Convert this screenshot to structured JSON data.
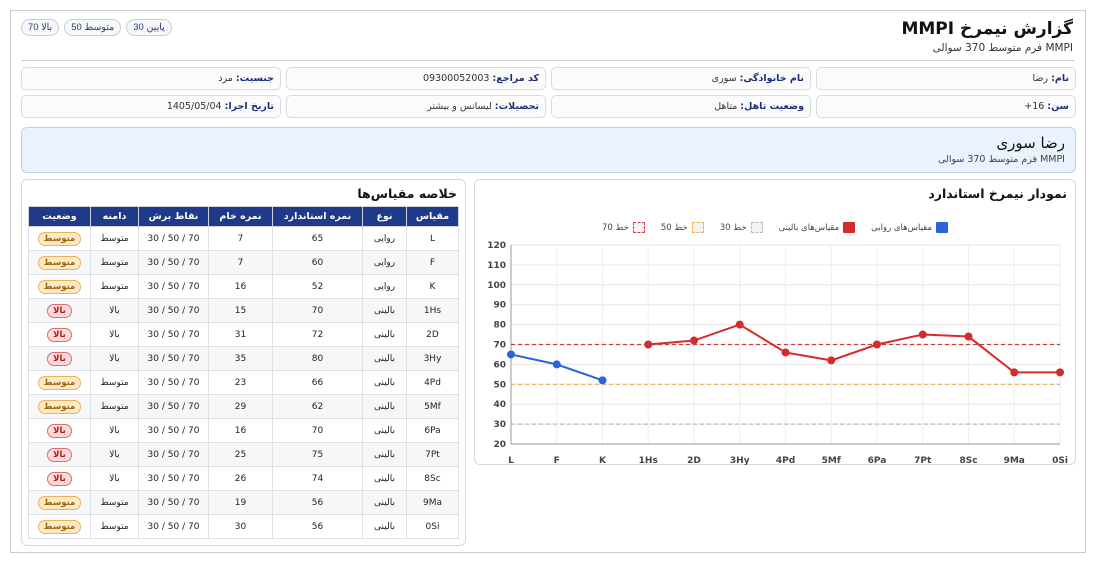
{
  "header": {
    "title": "گزارش نیمرخ MMPI",
    "subtitle": "MMPI فرم متوسط 370 سوالی"
  },
  "level_buttons": [
    {
      "label": "پایین 30"
    },
    {
      "label": "متوسط 50"
    },
    {
      "label": "بالا 70"
    }
  ],
  "info": [
    {
      "key": "نام:",
      "value": "رضا"
    },
    {
      "key": "نام خانوادگی:",
      "value": "سوری"
    },
    {
      "key": "کد مراجع:",
      "value": "09300052003"
    },
    {
      "key": "جنسیت:",
      "value": "مرد"
    },
    {
      "key": "سن:",
      "value": "16+"
    },
    {
      "key": "وضعیت تاهل:",
      "value": "متاهل"
    },
    {
      "key": "تحصیلات:",
      "value": "لیسانس و بیشتر"
    },
    {
      "key": "تاریخ اجرا:",
      "value": "1405/05/04"
    }
  ],
  "banner": {
    "name": "رضا سوری",
    "form": "MMPI فرم متوسط 370 سوالی"
  },
  "table": {
    "title": "خلاصه مقیاس‌ها",
    "columns": [
      "مقیاس",
      "نوع",
      "نمره استاندارد",
      "نمره خام",
      "نقاط برش",
      "دامنه",
      "وضعیت"
    ],
    "rows": [
      {
        "scale": "L",
        "type": "روایی",
        "t": "65",
        "raw": "7",
        "cut": "70 / 50 / 30",
        "range": "متوسط",
        "status": "متوسط",
        "level": "mid"
      },
      {
        "scale": "F",
        "type": "روایی",
        "t": "60",
        "raw": "7",
        "cut": "70 / 50 / 30",
        "range": "متوسط",
        "status": "متوسط",
        "level": "mid"
      },
      {
        "scale": "K",
        "type": "روایی",
        "t": "52",
        "raw": "16",
        "cut": "70 / 50 / 30",
        "range": "متوسط",
        "status": "متوسط",
        "level": "mid"
      },
      {
        "scale": "1Hs",
        "type": "بالینی",
        "t": "70",
        "raw": "15",
        "cut": "70 / 50 / 30",
        "range": "بالا",
        "status": "بالا",
        "level": "high"
      },
      {
        "scale": "2D",
        "type": "بالینی",
        "t": "72",
        "raw": "31",
        "cut": "70 / 50 / 30",
        "range": "بالا",
        "status": "بالا",
        "level": "high"
      },
      {
        "scale": "3Hy",
        "type": "بالینی",
        "t": "80",
        "raw": "35",
        "cut": "70 / 50 / 30",
        "range": "بالا",
        "status": "بالا",
        "level": "high"
      },
      {
        "scale": "4Pd",
        "type": "بالینی",
        "t": "66",
        "raw": "23",
        "cut": "70 / 50 / 30",
        "range": "متوسط",
        "status": "متوسط",
        "level": "mid"
      },
      {
        "scale": "5Mf",
        "type": "بالینی",
        "t": "62",
        "raw": "29",
        "cut": "70 / 50 / 30",
        "range": "متوسط",
        "status": "متوسط",
        "level": "mid"
      },
      {
        "scale": "6Pa",
        "type": "بالینی",
        "t": "70",
        "raw": "16",
        "cut": "70 / 50 / 30",
        "range": "بالا",
        "status": "بالا",
        "level": "high"
      },
      {
        "scale": "7Pt",
        "type": "بالینی",
        "t": "75",
        "raw": "25",
        "cut": "70 / 50 / 30",
        "range": "بالا",
        "status": "بالا",
        "level": "high"
      },
      {
        "scale": "8Sc",
        "type": "بالینی",
        "t": "74",
        "raw": "26",
        "cut": "70 / 50 / 30",
        "range": "بالا",
        "status": "بالا",
        "level": "high"
      },
      {
        "scale": "9Ma",
        "type": "بالینی",
        "t": "56",
        "raw": "19",
        "cut": "70 / 50 / 30",
        "range": "متوسط",
        "status": "متوسط",
        "level": "mid"
      },
      {
        "scale": "0Si",
        "type": "بالینی",
        "t": "56",
        "raw": "30",
        "cut": "70 / 50 / 30",
        "range": "متوسط",
        "status": "متوسط",
        "level": "mid"
      }
    ]
  },
  "chart_data": {
    "type": "line",
    "title": "نمودار نیمرخ استاندارد",
    "categories": [
      "L",
      "F",
      "K",
      "1Hs",
      "2D",
      "3Hy",
      "4Pd",
      "5Mf",
      "6Pa",
      "7Pt",
      "8Sc",
      "9Ma",
      "0Si"
    ],
    "ylim": [
      20,
      120
    ],
    "yticks": [
      20,
      30,
      40,
      50,
      60,
      70,
      80,
      90,
      100,
      110,
      120
    ],
    "grid": true,
    "legend": {
      "placement": "top-center",
      "entries": [
        {
          "label": "مقیاس‌های روایی",
          "color": "#2b64d8",
          "style": "solid"
        },
        {
          "label": "مقیاس‌های بالینی",
          "color": "#d42b2b",
          "style": "solid"
        },
        {
          "label": "خط 30",
          "color": "#bbbbbb",
          "style": "dashed"
        },
        {
          "label": "خط 50",
          "color": "#f0a84a",
          "style": "dashed"
        },
        {
          "label": "خط 70",
          "color": "#c83c3c",
          "style": "dashed"
        }
      ]
    },
    "series": [
      {
        "name": "مقیاس‌های روایی",
        "color": "#2b64d8",
        "x": [
          "L",
          "F",
          "K"
        ],
        "values": [
          65,
          60,
          52
        ]
      },
      {
        "name": "مقیاس‌های بالینی",
        "color": "#d42b2b",
        "x": [
          "1Hs",
          "2D",
          "3Hy",
          "4Pd",
          "5Mf",
          "6Pa",
          "7Pt",
          "8Sc",
          "9Ma",
          "0Si"
        ],
        "values": [
          70,
          72,
          80,
          66,
          62,
          70,
          75,
          74,
          56,
          56
        ]
      }
    ],
    "reference_lines": [
      {
        "value": 30,
        "color": "#bbbbbb"
      },
      {
        "value": 50,
        "color": "#f0a84a"
      },
      {
        "value": 70,
        "color": "#c83c3c"
      }
    ]
  }
}
